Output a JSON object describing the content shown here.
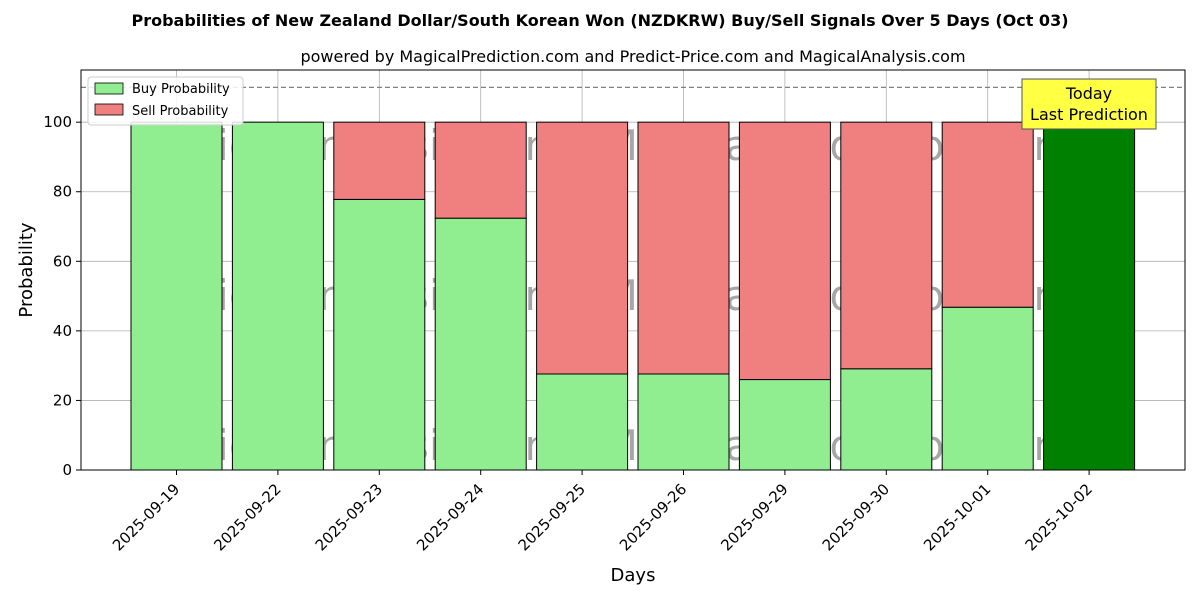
{
  "chart_data": {
    "type": "bar",
    "stacked": true,
    "title": "Probabilities of New Zealand Dollar/South Korean Won (NZDKRW) Buy/Sell Signals Over 5 Days (Oct 03)",
    "subtitle": "powered by MagicalPrediction.com and Predict-Price.com and MagicalAnalysis.com",
    "xlabel": "Days",
    "ylabel": "Probability",
    "ylim": [
      0,
      115
    ],
    "yticks": [
      0,
      20,
      40,
      60,
      80,
      100
    ],
    "reference_line": 110,
    "grid": true,
    "legend_position": "top-left",
    "categories": [
      "2025-09-19",
      "2025-09-22",
      "2025-09-23",
      "2025-09-24",
      "2025-09-25",
      "2025-09-26",
      "2025-09-29",
      "2025-09-30",
      "2025-10-01",
      "2025-10-02"
    ],
    "series": [
      {
        "name": "Buy Probability",
        "color": "#90ee90",
        "values": [
          100,
          100,
          77.8,
          72.4,
          27.6,
          27.6,
          26.0,
          29.1,
          46.8,
          100
        ]
      },
      {
        "name": "Sell Probability",
        "color": "#f08080",
        "values": [
          0,
          0,
          22.2,
          27.6,
          72.4,
          72.4,
          74.0,
          70.9,
          53.2,
          0
        ]
      }
    ],
    "highlight": {
      "index": 9,
      "color": "#008000"
    },
    "annotation": {
      "line1": "Today",
      "line2": "Last Prediction",
      "background": "#ffff44"
    },
    "watermarks": [
      "MagicalAnalysis.com",
      "MagicalPrediction.com"
    ]
  }
}
